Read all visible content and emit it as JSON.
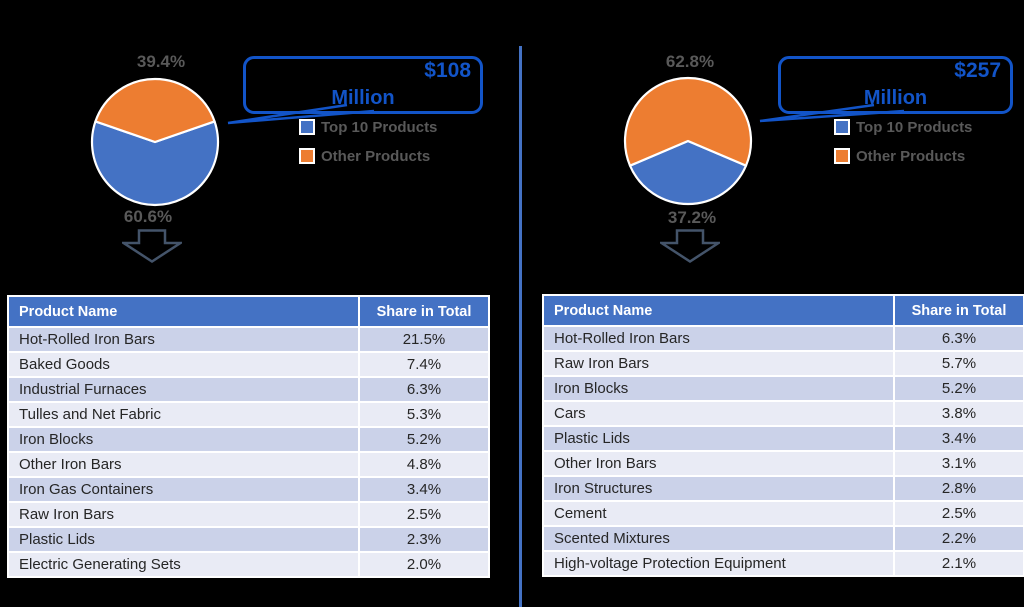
{
  "colors": {
    "top10_blue": "#4472C4",
    "other_orange": "#ED7D31",
    "callout_blue": "#1254C8",
    "divider_blue": "#4472C4",
    "arrow_slate": "#44546A",
    "label_gray": "#595959",
    "band_dark": "#CBD2E9",
    "band_light": "#E9EBF5",
    "table_text": "#262626",
    "background": "#000000"
  },
  "panels": [
    {
      "total_value": "$108",
      "total_unit": "Million",
      "pie": {
        "other_pct": 39.4,
        "top10_pct": 60.6,
        "other_label": "39.4%",
        "top10_label": "60.6%"
      },
      "legend": [
        {
          "label": "Top 10 Products",
          "color": "#4472C4"
        },
        {
          "label": "Other Products",
          "color": "#ED7D31"
        }
      ],
      "table": {
        "headers": [
          "Product Name",
          "Share in Total"
        ],
        "rows": [
          [
            "Hot-Rolled Iron Bars",
            "21.5%"
          ],
          [
            "Baked Goods",
            "7.4%"
          ],
          [
            "Industrial Furnaces",
            "6.3%"
          ],
          [
            "Tulles and Net Fabric",
            "5.3%"
          ],
          [
            "Iron Blocks",
            "5.2%"
          ],
          [
            "Other Iron Bars",
            "4.8%"
          ],
          [
            "Iron Gas Containers",
            "3.4%"
          ],
          [
            "Raw Iron Bars",
            "2.5%"
          ],
          [
            "Plastic Lids",
            "2.3%"
          ],
          [
            "Electric Generating Sets",
            "2.0%"
          ]
        ]
      }
    },
    {
      "total_value": "$257",
      "total_unit": "Million",
      "pie": {
        "other_pct": 62.8,
        "top10_pct": 37.2,
        "other_label": "62.8%",
        "top10_label": "37.2%"
      },
      "legend": [
        {
          "label": "Top 10 Products",
          "color": "#4472C4"
        },
        {
          "label": "Other Products",
          "color": "#ED7D31"
        }
      ],
      "table": {
        "headers": [
          "Product Name",
          "Share in Total"
        ],
        "rows": [
          [
            "Hot-Rolled Iron Bars",
            "6.3%"
          ],
          [
            "Raw Iron Bars",
            "5.7%"
          ],
          [
            "Iron Blocks",
            "5.2%"
          ],
          [
            "Cars",
            "3.8%"
          ],
          [
            "Plastic Lids",
            "3.4%"
          ],
          [
            "Other Iron Bars",
            "3.1%"
          ],
          [
            "Iron Structures",
            "2.8%"
          ],
          [
            "Cement",
            "2.5%"
          ],
          [
            "Scented Mixtures",
            "2.2%"
          ],
          [
            "High-voltage Protection Equipment",
            "2.1%"
          ]
        ]
      }
    }
  ],
  "chart_data": [
    {
      "type": "pie",
      "title": "$108 Million",
      "labels": [
        "Top 10 Products",
        "Other Products"
      ],
      "values": [
        60.6,
        39.4
      ],
      "colors": [
        "#4472C4",
        "#ED7D31"
      ],
      "data_labels": [
        "60.6%",
        "39.4%"
      ],
      "legend_position": "right"
    },
    {
      "type": "table",
      "columns": [
        "Product Name",
        "Share in Total"
      ],
      "rows": [
        [
          "Hot-Rolled Iron Bars",
          "21.5%"
        ],
        [
          "Baked Goods",
          "7.4%"
        ],
        [
          "Industrial Furnaces",
          "6.3%"
        ],
        [
          "Tulles and Net Fabric",
          "5.3%"
        ],
        [
          "Iron Blocks",
          "5.2%"
        ],
        [
          "Other Iron Bars",
          "4.8%"
        ],
        [
          "Iron Gas Containers",
          "3.4%"
        ],
        [
          "Raw Iron Bars",
          "2.5%"
        ],
        [
          "Plastic Lids",
          "2.3%"
        ],
        [
          "Electric Generating Sets",
          "2.0%"
        ]
      ]
    },
    {
      "type": "pie",
      "title": "$257 Million",
      "labels": [
        "Top 10 Products",
        "Other Products"
      ],
      "values": [
        37.2,
        62.8
      ],
      "colors": [
        "#4472C4",
        "#ED7D31"
      ],
      "data_labels": [
        "37.2%",
        "62.8%"
      ],
      "legend_position": "right"
    },
    {
      "type": "table",
      "columns": [
        "Product Name",
        "Share in Total"
      ],
      "rows": [
        [
          "Hot-Rolled Iron Bars",
          "6.3%"
        ],
        [
          "Raw Iron Bars",
          "5.7%"
        ],
        [
          "Iron Blocks",
          "5.2%"
        ],
        [
          "Cars",
          "3.8%"
        ],
        [
          "Plastic Lids",
          "3.4%"
        ],
        [
          "Other Iron Bars",
          "3.1%"
        ],
        [
          "Iron Structures",
          "2.8%"
        ],
        [
          "Cement",
          "2.5%"
        ],
        [
          "Scented Mixtures",
          "2.2%"
        ],
        [
          "High-voltage Protection Equipment",
          "2.1%"
        ]
      ]
    }
  ]
}
